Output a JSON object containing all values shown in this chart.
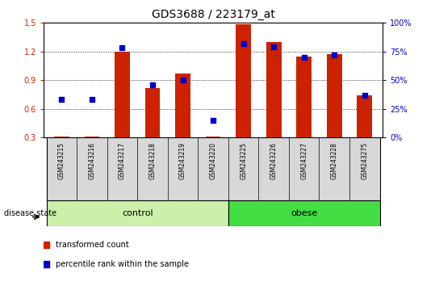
{
  "title": "GDS3688 / 223179_at",
  "samples": [
    "GSM243215",
    "GSM243216",
    "GSM243217",
    "GSM243218",
    "GSM243219",
    "GSM243220",
    "GSM243225",
    "GSM243226",
    "GSM243227",
    "GSM243228",
    "GSM243275"
  ],
  "transformed_count": [
    0.305,
    0.305,
    1.2,
    0.82,
    0.97,
    0.31,
    1.49,
    1.3,
    1.15,
    1.17,
    0.74
  ],
  "percentile_rank": [
    33,
    33,
    78,
    46,
    50,
    15,
    82,
    79,
    70,
    72,
    37
  ],
  "ymin": 0.3,
  "ymax": 1.5,
  "yticks": [
    0.3,
    0.6,
    0.9,
    1.2,
    1.5
  ],
  "y2ticks": [
    0,
    25,
    50,
    75,
    100
  ],
  "y2ticklabels": [
    "0%",
    "25%",
    "50%",
    "75%",
    "100%"
  ],
  "bar_color": "#cc2200",
  "dot_color": "#0000cc",
  "control_color": "#ccf0aa",
  "obese_color": "#44dd44",
  "sample_bg_color": "#d8d8d8",
  "bar_width": 0.5,
  "dot_size": 22,
  "title_fontsize": 10,
  "tick_fontsize": 7,
  "sample_fontsize": 5.5,
  "group_fontsize": 8,
  "legend_fontsize": 7,
  "ds_label_fontsize": 7
}
